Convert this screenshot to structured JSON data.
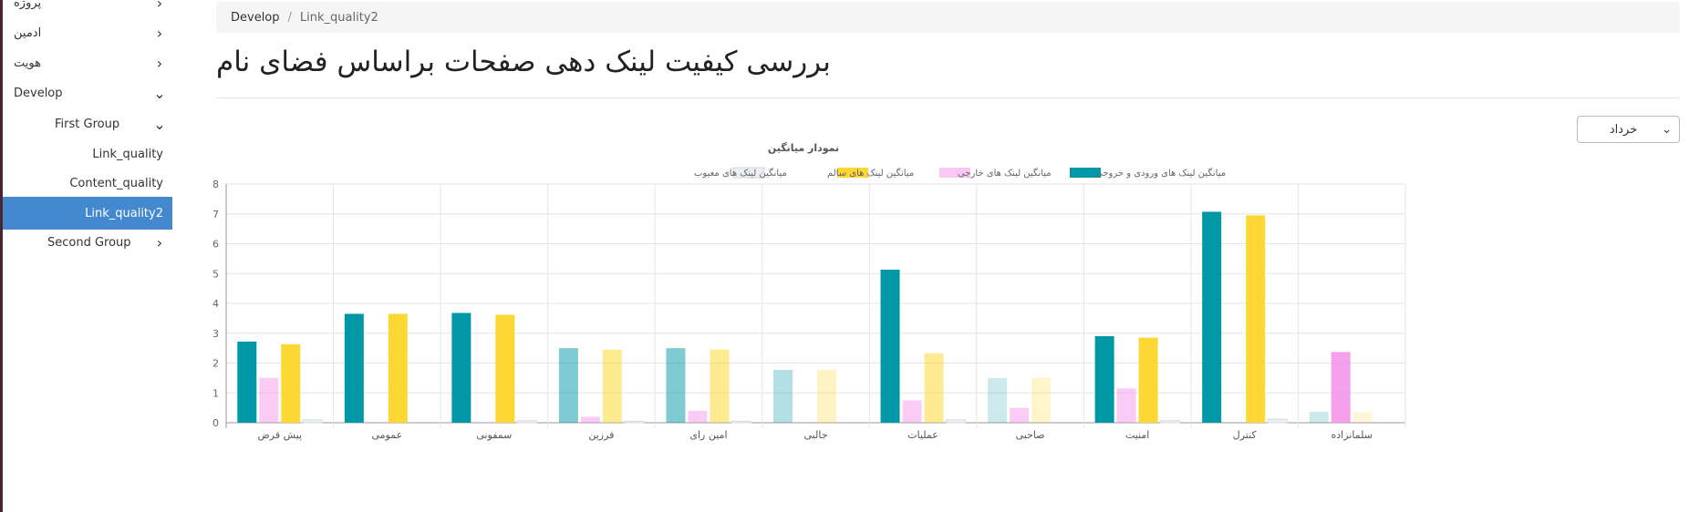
{
  "sidebar": {
    "items": [
      {
        "label": "پروژه",
        "chevron": "chevron-right"
      },
      {
        "label": "ادمین",
        "chevron": "chevron-right"
      },
      {
        "label": "هویت",
        "chevron": "chevron-right"
      },
      {
        "label": "Develop",
        "chevron": "chevron-down"
      },
      {
        "label": "First Group",
        "chevron": "chevron-down"
      },
      {
        "label": "Link_quality"
      },
      {
        "label": "Content_quality"
      },
      {
        "label": "Link_quality2",
        "active": true
      },
      {
        "label": "Second Group",
        "chevron": "chevron-right"
      }
    ]
  },
  "breadcrumb": {
    "root": "Develop",
    "separator": "/",
    "current": "Link_quality2"
  },
  "page": {
    "title": "بررسی کیفیت لینک دهی صفحات براساس فضای نام"
  },
  "filter": {
    "month": "خرداد"
  },
  "colors": {
    "teal": "#0097a7",
    "pink": "#f48fe8",
    "yellow": "#fdd835",
    "gray": "#eceff1",
    "accent": "#4489cf"
  },
  "chart_data": {
    "type": "bar",
    "title": "نمودار میانگین",
    "categories": [
      "پیش فرض",
      "عمومی",
      "سمفونی",
      "فرزین",
      "امین رای",
      "جالبی",
      "عملیات",
      "صاحبی",
      "امنیت",
      "کنترل",
      "سلمانزاده"
    ],
    "series": [
      {
        "name": "میانگین لینک های ورودی و خروجی",
        "values": [
          2.72,
          3.65,
          3.68,
          2.5,
          2.5,
          1.77,
          5.13,
          1.5,
          2.9,
          7.07,
          0.37
        ]
      },
      {
        "name": "میانگین لینک های خارجی",
        "values": [
          1.5,
          0,
          0.02,
          0.2,
          0.4,
          0,
          0.75,
          0.5,
          1.15,
          0,
          2.37
        ]
      },
      {
        "name": "میانگین لینک های سالم",
        "values": [
          2.63,
          3.65,
          3.62,
          2.45,
          2.45,
          1.77,
          2.33,
          1.5,
          2.85,
          6.95,
          0.37
        ]
      },
      {
        "name": "میانگین لینک های معیوب",
        "values": [
          0.1,
          0,
          0.07,
          0.05,
          0.05,
          0,
          0.1,
          0,
          0.07,
          0.12,
          0
        ]
      }
    ],
    "series_opacity": [
      [
        1,
        1,
        1,
        0.5,
        0.5,
        0.3,
        1,
        0.2,
        1,
        1,
        0.2
      ],
      [
        0.45,
        0.45,
        0.45,
        0.45,
        0.45,
        0.45,
        0.45,
        0.45,
        0.45,
        0.45,
        0.85
      ],
      [
        1,
        1,
        1,
        0.55,
        0.55,
        0.3,
        0.55,
        0.25,
        1,
        1,
        0.2
      ],
      [
        1,
        1,
        1,
        1,
        1,
        1,
        1,
        1,
        1,
        1,
        1
      ]
    ],
    "ylim": [
      0,
      8
    ],
    "yticks": [
      0,
      1,
      2,
      3,
      4,
      5,
      6,
      7,
      8
    ],
    "grid": true,
    "legend": "top"
  }
}
